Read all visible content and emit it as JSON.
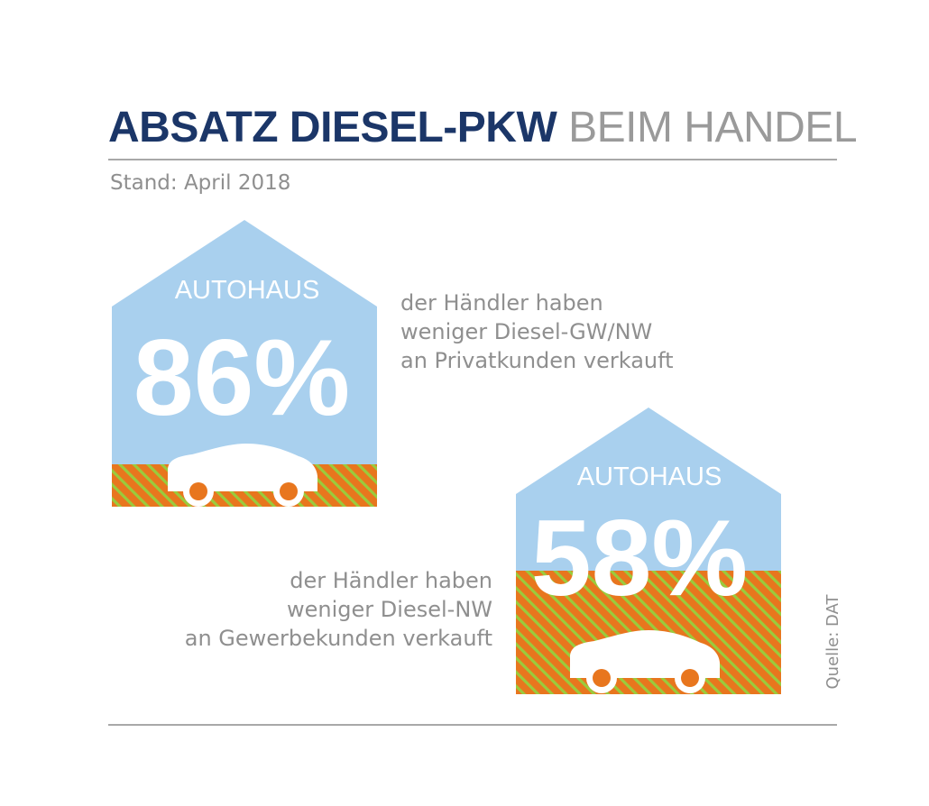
{
  "header": {
    "title_bold": "ABSATZ DIESEL-PKW",
    "title_light": "BEIM HANDEL",
    "date": "Stand: April 2018"
  },
  "source": "Quelle: DAT",
  "colors": {
    "title": "#1b3668",
    "sky": "#a9d0ee",
    "ground": "#e8761e",
    "stripe": "#9acb3c",
    "text": "#8f8f8f"
  },
  "chart_data": [
    {
      "type": "pictogram",
      "icon": "house-with-car",
      "label": "AUTOHAUS",
      "value": 86,
      "value_text": "86%",
      "description_lines": [
        "der Händler haben",
        "weniger Diesel-GW/NW",
        "an Privatkunden verkauft"
      ]
    },
    {
      "type": "pictogram",
      "icon": "house-with-car",
      "label": "AUTOHAUS",
      "value": 58,
      "value_text": "58%",
      "description_lines": [
        "der Händler haben",
        "weniger Diesel-NW",
        "an Gewerbekunden verkauft"
      ]
    }
  ]
}
